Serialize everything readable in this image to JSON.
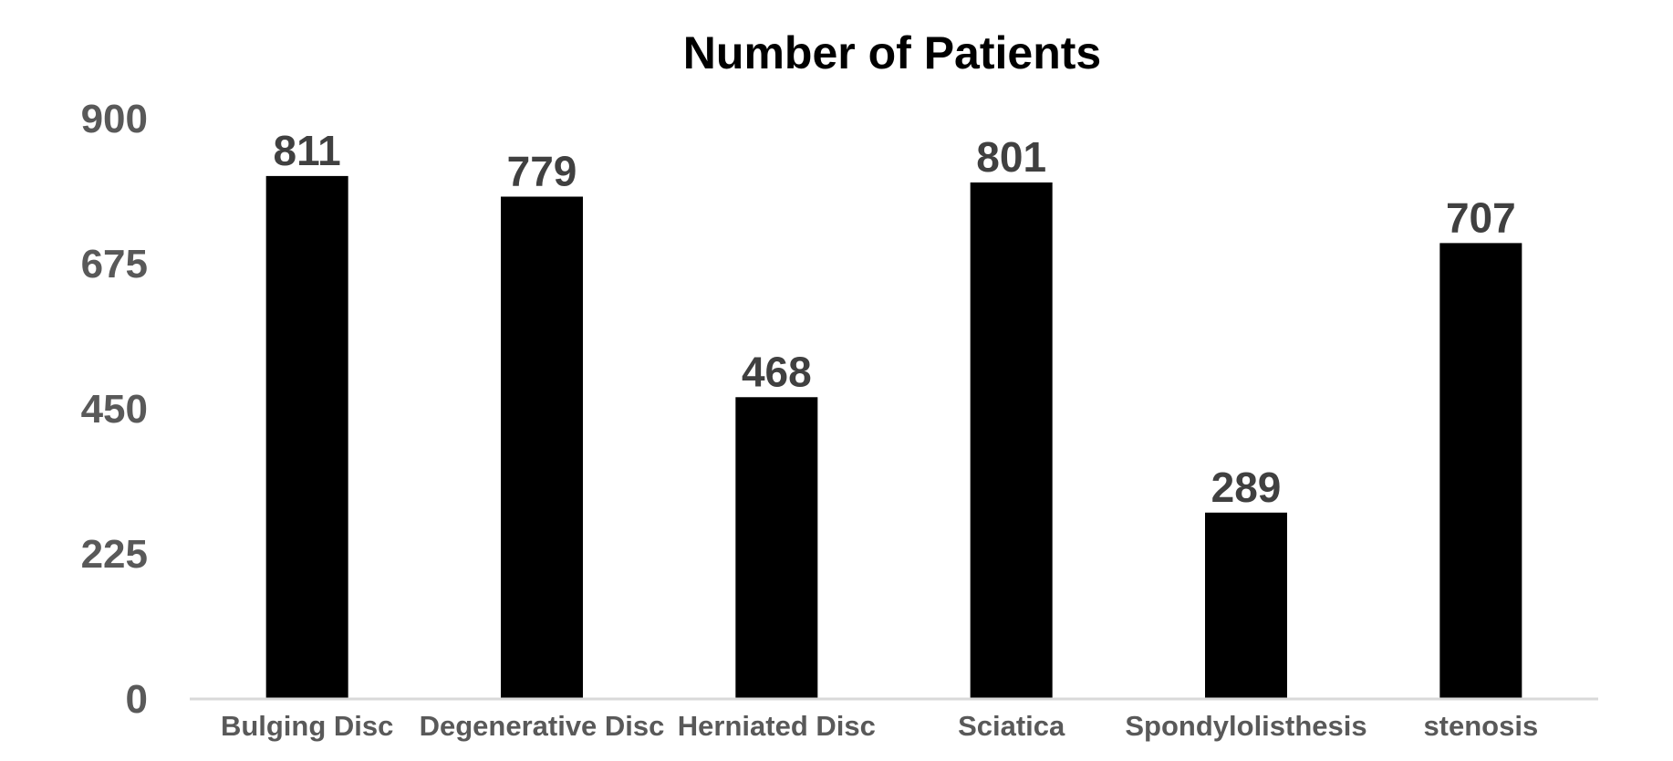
{
  "chart_data": {
    "type": "bar",
    "title": "Number of Patients",
    "xlabel": "",
    "ylabel": "",
    "categories": [
      "Bulging Disc",
      "Degenerative Disc",
      "Herniated Disc",
      "Sciatica",
      "Spondylolisthesis",
      "stenosis"
    ],
    "values": [
      811,
      779,
      468,
      801,
      289,
      707
    ],
    "data_labels": [
      "811",
      "779",
      "468",
      "801",
      "289",
      "707"
    ],
    "ylim": [
      0,
      900
    ],
    "yticks": [
      0,
      225,
      450,
      675,
      900
    ],
    "ytick_labels": [
      "0",
      "225",
      "450",
      "675",
      "900"
    ],
    "grid": false,
    "legend": "none",
    "colors": {
      "bar": "#000000",
      "axis_line": "#d9d9d9",
      "tick_text": "#595959",
      "data_label_text": "#404040",
      "title_text": "#000000"
    }
  }
}
